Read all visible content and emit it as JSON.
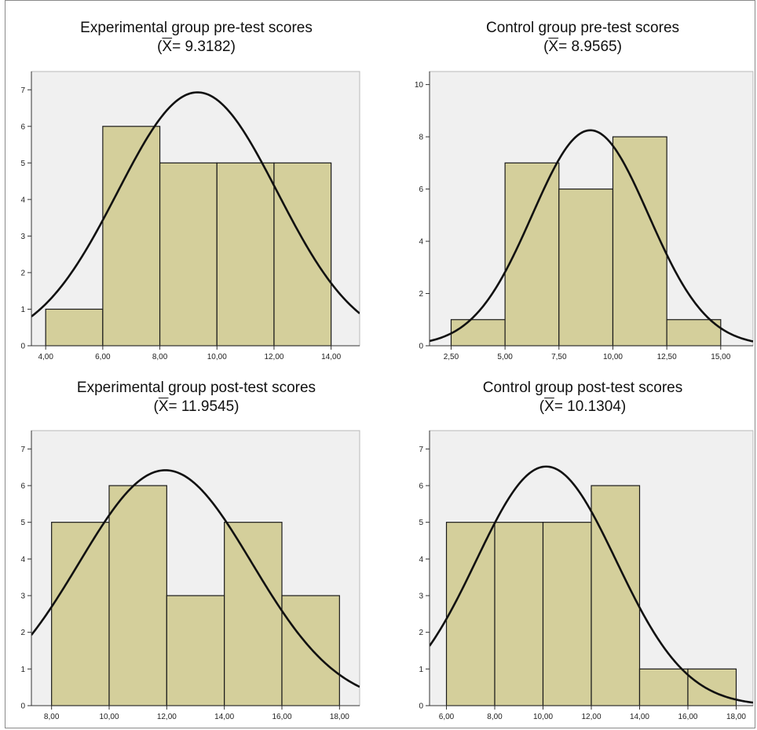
{
  "chart_data": [
    {
      "type": "bar",
      "title": "Experimental group pre-test scores",
      "subtitle_symbol": "X",
      "subtitle_value": "= 9.3182)",
      "bins": [
        [
          4,
          6
        ],
        [
          6,
          8
        ],
        [
          8,
          10
        ],
        [
          10,
          12
        ],
        [
          12,
          14
        ]
      ],
      "values": [
        1,
        6,
        5,
        5,
        5
      ],
      "normal_curve": {
        "mean": 9.3182,
        "peak": 6.93,
        "sd": 2.8
      },
      "xlim": [
        3.5,
        15.0
      ],
      "ylim": [
        0,
        7.5
      ],
      "xticks": [
        4,
        6,
        8,
        10,
        12,
        14
      ],
      "xtick_labels": [
        "4,00",
        "6,00",
        "8,00",
        "10,00",
        "12,00",
        "14,00"
      ],
      "yticks": [
        0,
        1,
        2,
        3,
        4,
        5,
        6,
        7
      ],
      "ytick_labels": [
        "0",
        "1",
        "2",
        "3",
        "4",
        "5",
        "6",
        "7"
      ],
      "grid": false
    },
    {
      "type": "bar",
      "title": "Control group pre-test scores",
      "subtitle_symbol": "X",
      "subtitle_value": "= 8.9565)",
      "bins": [
        [
          2.5,
          5
        ],
        [
          5,
          7.5
        ],
        [
          7.5,
          10
        ],
        [
          10,
          12.5
        ],
        [
          12.5,
          15
        ]
      ],
      "values": [
        1,
        7,
        6,
        8,
        1
      ],
      "normal_curve": {
        "mean": 8.9565,
        "peak": 8.25,
        "sd": 2.7
      },
      "xlim": [
        1.5,
        16.5
      ],
      "ylim": [
        0,
        10.5
      ],
      "xticks": [
        2.5,
        5,
        7.5,
        10,
        12.5,
        15
      ],
      "xtick_labels": [
        "2,50",
        "5,00",
        "7,50",
        "10,00",
        "12,50",
        "15,00"
      ],
      "yticks": [
        0,
        2,
        4,
        6,
        8,
        10
      ],
      "ytick_labels": [
        "0",
        "2",
        "4",
        "6",
        "8",
        "10"
      ],
      "grid": false
    },
    {
      "type": "bar",
      "title": "Experimental group post-test scores",
      "subtitle_symbol": "X",
      "subtitle_value": "= 11.9545)",
      "bins": [
        [
          8,
          10
        ],
        [
          10,
          12
        ],
        [
          12,
          14
        ],
        [
          14,
          16
        ],
        [
          16,
          18
        ]
      ],
      "values": [
        5,
        6,
        3,
        5,
        3
      ],
      "normal_curve": {
        "mean": 11.9545,
        "peak": 6.42,
        "sd": 3.0
      },
      "xlim": [
        7.3,
        18.7
      ],
      "ylim": [
        0,
        7.5
      ],
      "xticks": [
        8,
        10,
        12,
        14,
        16,
        18
      ],
      "xtick_labels": [
        "8,00",
        "10,00",
        "12,00",
        "14,00",
        "16,00",
        "18,00"
      ],
      "yticks": [
        0,
        1,
        2,
        3,
        4,
        5,
        6,
        7
      ],
      "ytick_labels": [
        "0",
        "1",
        "2",
        "3",
        "4",
        "5",
        "6",
        "7"
      ],
      "grid": false
    },
    {
      "type": "bar",
      "title": "Control group post-test scores",
      "subtitle_symbol": "X",
      "subtitle_value": "= 10.1304)",
      "bins": [
        [
          6,
          8
        ],
        [
          8,
          10
        ],
        [
          10,
          12
        ],
        [
          12,
          14
        ],
        [
          14,
          16
        ],
        [
          16,
          18
        ]
      ],
      "values": [
        5,
        5,
        5,
        6,
        1,
        1
      ],
      "normal_curve": {
        "mean": 10.1304,
        "peak": 6.52,
        "sd": 2.9
      },
      "xlim": [
        5.3,
        18.7
      ],
      "ylim": [
        0,
        7.5
      ],
      "xticks": [
        6,
        8,
        10,
        12,
        14,
        16,
        18
      ],
      "xtick_labels": [
        "6,00",
        "8,00",
        "10,00",
        "12,00",
        "14,00",
        "16,00",
        "18,00"
      ],
      "yticks": [
        0,
        1,
        2,
        3,
        4,
        5,
        6,
        7
      ],
      "ytick_labels": [
        "0",
        "1",
        "2",
        "3",
        "4",
        "5",
        "6",
        "7"
      ],
      "grid": false
    }
  ],
  "colors": {
    "bar_fill": "#d4cf9b",
    "bar_stroke": "#1a1a1a",
    "plot_bg": "#f0f0f0",
    "curve": "#111111"
  }
}
